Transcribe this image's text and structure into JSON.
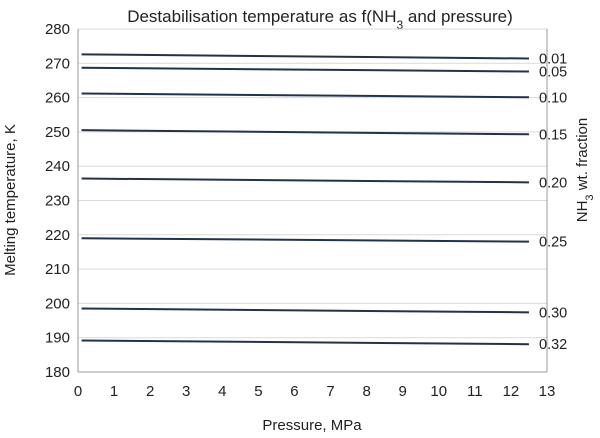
{
  "chart_data": {
    "type": "line",
    "title": {
      "before_sub": "Destabilisation temperature as f(NH",
      "sub": "3",
      "after_sub": " and pressure)"
    },
    "xlabel": "Pressure, MPa",
    "ylabel": "Melting temperature, K",
    "right_label": {
      "before_sub": "NH",
      "sub": "3",
      "after_sub": " wt. fraction"
    },
    "xlim": [
      0,
      13
    ],
    "ylim": [
      180,
      280
    ],
    "xticks": [
      0,
      1,
      2,
      3,
      4,
      5,
      6,
      7,
      8,
      9,
      10,
      11,
      12,
      13
    ],
    "yticks": [
      180,
      190,
      200,
      210,
      220,
      230,
      240,
      250,
      260,
      270,
      280
    ],
    "grid": "horizontal",
    "line_color": "#1f3350",
    "series": [
      {
        "name": "0.01",
        "x": [
          0.1,
          12.5
        ],
        "y": [
          272.6,
          271.4
        ]
      },
      {
        "name": "0.05",
        "x": [
          0.1,
          12.5
        ],
        "y": [
          268.7,
          267.6
        ]
      },
      {
        "name": "0.10",
        "x": [
          0.1,
          12.5
        ],
        "y": [
          261.2,
          260.1
        ]
      },
      {
        "name": "0.15",
        "x": [
          0.1,
          12.5
        ],
        "y": [
          250.5,
          249.3
        ]
      },
      {
        "name": "0.20",
        "x": [
          0.1,
          12.5
        ],
        "y": [
          236.4,
          235.3
        ]
      },
      {
        "name": "0.25",
        "x": [
          0.1,
          12.5
        ],
        "y": [
          219.0,
          218.0
        ]
      },
      {
        "name": "0.30",
        "x": [
          0.1,
          12.5
        ],
        "y": [
          198.5,
          197.4
        ]
      },
      {
        "name": "0.32",
        "x": [
          0.1,
          12.5
        ],
        "y": [
          189.2,
          188.1
        ]
      }
    ]
  }
}
